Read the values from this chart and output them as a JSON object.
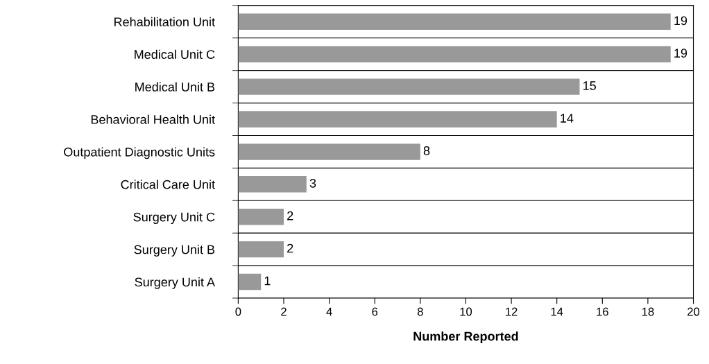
{
  "chart_data": {
    "type": "bar",
    "orientation": "horizontal",
    "xlabel": "Number Reported",
    "categories": [
      "Rehabilitation Unit",
      "Medical Unit C",
      "Medical Unit B",
      "Behavioral Health Unit",
      "Outpatient Diagnostic Units",
      "Critical Care Unit",
      "Surgery Unit C",
      "Surgery Unit B",
      "Surgery Unit A"
    ],
    "values": [
      19,
      19,
      15,
      14,
      8,
      3,
      2,
      2,
      1
    ],
    "color": "#999999",
    "xlim": [
      0,
      20
    ],
    "xticks": [
      0,
      2,
      4,
      6,
      8,
      10,
      12,
      14,
      16,
      18,
      20
    ],
    "grid": "y",
    "data_labels": true
  }
}
